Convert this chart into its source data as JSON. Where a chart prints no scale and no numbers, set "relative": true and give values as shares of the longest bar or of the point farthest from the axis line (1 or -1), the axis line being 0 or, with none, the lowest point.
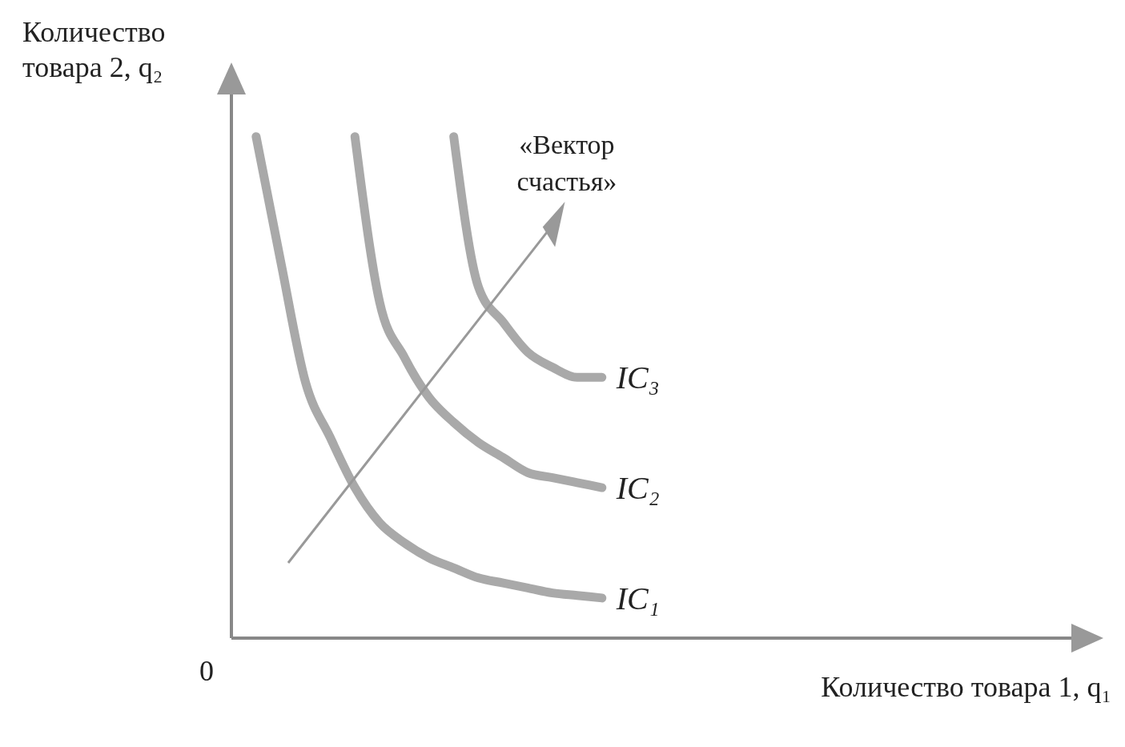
{
  "chart_data": {
    "type": "line",
    "relative": true,
    "xlabel": "Количество товара 1, q₁",
    "ylabel": "Количество товара 2, q₂",
    "categories": [
      null,
      null,
      null,
      null,
      null,
      null,
      null,
      null,
      null,
      null,
      null,
      null,
      null,
      null,
      null,
      null,
      null,
      null,
      null,
      null,
      null,
      null,
      null,
      null,
      null,
      null,
      null,
      null,
      null,
      null,
      null,
      null,
      null,
      null,
      null
    ],
    "series": [
      {
        "name": "IC₁",
        "color": "#a9a9a9",
        "values": [
          null,
          1.0,
          0.75,
          0.51,
          0.4,
          0.3,
          0.23,
          0.19,
          0.16,
          0.14,
          0.12,
          0.11,
          0.1,
          0.09,
          0.085,
          0.08,
          null,
          null,
          null,
          null,
          null,
          null,
          null,
          null,
          null,
          null,
          null,
          null,
          null,
          null,
          null,
          null,
          null,
          null,
          null
        ]
      },
      {
        "name": "IC₂",
        "color": "#a9a9a9",
        "values": [
          null,
          null,
          null,
          null,
          null,
          1.0,
          0.67,
          0.56,
          0.48,
          0.43,
          0.39,
          0.36,
          0.33,
          0.32,
          0.31,
          0.3,
          null,
          null,
          null,
          null,
          null,
          null,
          null,
          null,
          null,
          null,
          null,
          null,
          null,
          null,
          null,
          null,
          null,
          null,
          null
        ]
      },
      {
        "name": "IC₃",
        "color": "#a9a9a9",
        "values": [
          null,
          null,
          null,
          null,
          null,
          null,
          null,
          null,
          null,
          1.0,
          0.7,
          0.63,
          0.57,
          0.54,
          0.52,
          0.52,
          null,
          null,
          null,
          null,
          null,
          null,
          null,
          null,
          null,
          null,
          null,
          null,
          null,
          null,
          null,
          null,
          null,
          null,
          null
        ]
      }
    ],
    "annotations": [
      "«Вектор счастья»",
      "0"
    ],
    "marker": "none",
    "line_style": "solid"
  }
}
